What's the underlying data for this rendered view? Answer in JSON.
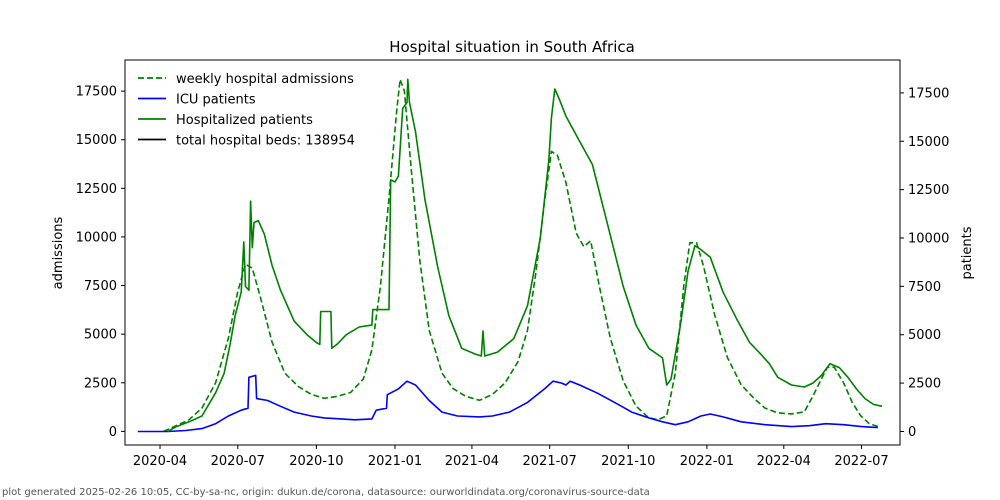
{
  "chart_data": {
    "type": "line",
    "title": "Hospital situation in South Africa",
    "xlabel": "",
    "ylabel_left": "admissions",
    "ylabel_right": "patients",
    "xlim": [
      "2020-02-20",
      "2022-08-15"
    ],
    "ylim_left": [
      -700,
      19100
    ],
    "ylim_right": [
      -700,
      19200
    ],
    "grid": false,
    "legend_placement": "top-left",
    "x_ticks": [
      "2020-04",
      "2020-07",
      "2020-10",
      "2021-01",
      "2021-04",
      "2021-07",
      "2021-10",
      "2022-01",
      "2022-04",
      "2022-07"
    ],
    "y_ticks_left": [
      0,
      2500,
      5000,
      7500,
      10000,
      12500,
      15000,
      17500
    ],
    "y_ticks_right": [
      0,
      2500,
      5000,
      7500,
      10000,
      12500,
      15000,
      17500
    ],
    "legend": [
      {
        "label": "weekly hospital admissions",
        "color": "#008000",
        "style": "dashed"
      },
      {
        "label": "ICU patients",
        "color": "#0000ff",
        "style": "solid"
      },
      {
        "label": "Hospitalized patients",
        "color": "#008000",
        "style": "solid"
      },
      {
        "label": "total hospital beds: 138954",
        "color": "#000000",
        "style": "solid"
      }
    ],
    "series": [
      {
        "name": "weekly hospital admissions",
        "axis": "left",
        "color": "#008000",
        "style": "dashed",
        "points": [
          [
            "2020-04-05",
            0
          ],
          [
            "2020-04-20",
            300
          ],
          [
            "2020-05-05",
            600
          ],
          [
            "2020-05-20",
            1200
          ],
          [
            "2020-06-05",
            2500
          ],
          [
            "2020-06-20",
            4800
          ],
          [
            "2020-07-01",
            7200
          ],
          [
            "2020-07-10",
            8600
          ],
          [
            "2020-07-18",
            8400
          ],
          [
            "2020-07-28",
            6800
          ],
          [
            "2020-08-10",
            4600
          ],
          [
            "2020-08-25",
            3000
          ],
          [
            "2020-09-10",
            2300
          ],
          [
            "2020-09-25",
            1900
          ],
          [
            "2020-10-10",
            1700
          ],
          [
            "2020-10-25",
            1800
          ],
          [
            "2020-11-10",
            2000
          ],
          [
            "2020-11-25",
            2700
          ],
          [
            "2020-12-05",
            4200
          ],
          [
            "2020-12-15",
            7500
          ],
          [
            "2020-12-25",
            12000
          ],
          [
            "2021-01-03",
            16500
          ],
          [
            "2021-01-07",
            18100
          ],
          [
            "2021-01-12",
            17500
          ],
          [
            "2021-01-20",
            13500
          ],
          [
            "2021-01-30",
            8800
          ],
          [
            "2021-02-10",
            5200
          ],
          [
            "2021-02-25",
            3000
          ],
          [
            "2021-03-10",
            2200
          ],
          [
            "2021-03-25",
            1800
          ],
          [
            "2021-04-10",
            1600
          ],
          [
            "2021-04-25",
            1900
          ],
          [
            "2021-05-10",
            2500
          ],
          [
            "2021-05-25",
            3600
          ],
          [
            "2021-06-05",
            5200
          ],
          [
            "2021-06-15",
            8200
          ],
          [
            "2021-06-25",
            11800
          ],
          [
            "2021-07-03",
            14400
          ],
          [
            "2021-07-10",
            14200
          ],
          [
            "2021-07-20",
            12800
          ],
          [
            "2021-08-01",
            10200
          ],
          [
            "2021-08-10",
            9500
          ],
          [
            "2021-08-18",
            9800
          ],
          [
            "2021-08-28",
            7500
          ],
          [
            "2021-09-10",
            4800
          ],
          [
            "2021-09-25",
            2600
          ],
          [
            "2021-10-10",
            1300
          ],
          [
            "2021-10-25",
            700
          ],
          [
            "2021-11-05",
            600
          ],
          [
            "2021-11-15",
            800
          ],
          [
            "2021-11-25",
            3000
          ],
          [
            "2021-12-05",
            7500
          ],
          [
            "2021-12-12",
            9700
          ],
          [
            "2021-12-20",
            9700
          ],
          [
            "2021-12-28",
            8500
          ],
          [
            "2022-01-10",
            6000
          ],
          [
            "2022-01-25",
            3800
          ],
          [
            "2022-02-10",
            2400
          ],
          [
            "2022-02-25",
            1700
          ],
          [
            "2022-03-10",
            1200
          ],
          [
            "2022-03-25",
            950
          ],
          [
            "2022-04-10",
            900
          ],
          [
            "2022-04-25",
            1000
          ],
          [
            "2022-05-05",
            1800
          ],
          [
            "2022-05-15",
            2700
          ],
          [
            "2022-05-22",
            3300
          ],
          [
            "2022-05-30",
            3300
          ],
          [
            "2022-06-10",
            2500
          ],
          [
            "2022-06-20",
            1500
          ],
          [
            "2022-06-30",
            800
          ],
          [
            "2022-07-10",
            400
          ],
          [
            "2022-07-20",
            250
          ]
        ]
      },
      {
        "name": "ICU patients",
        "axis": "right",
        "color": "#0000ff",
        "style": "solid",
        "points": [
          [
            "2020-03-06",
            0
          ],
          [
            "2020-04-10",
            0
          ],
          [
            "2020-05-01",
            50
          ],
          [
            "2020-05-20",
            150
          ],
          [
            "2020-06-05",
            400
          ],
          [
            "2020-06-20",
            800
          ],
          [
            "2020-07-05",
            1100
          ],
          [
            "2020-07-13",
            1200
          ],
          [
            "2020-07-14",
            2800
          ],
          [
            "2020-07-22",
            2900
          ],
          [
            "2020-07-23",
            1700
          ],
          [
            "2020-08-05",
            1600
          ],
          [
            "2020-08-20",
            1300
          ],
          [
            "2020-09-05",
            1000
          ],
          [
            "2020-09-25",
            800
          ],
          [
            "2020-10-10",
            700
          ],
          [
            "2020-10-30",
            650
          ],
          [
            "2020-11-15",
            600
          ],
          [
            "2020-12-05",
            650
          ],
          [
            "2020-12-10",
            1100
          ],
          [
            "2020-12-22",
            1200
          ],
          [
            "2020-12-23",
            1900
          ],
          [
            "2021-01-05",
            2200
          ],
          [
            "2021-01-15",
            2600
          ],
          [
            "2021-01-25",
            2400
          ],
          [
            "2021-02-10",
            1600
          ],
          [
            "2021-02-25",
            1000
          ],
          [
            "2021-03-15",
            800
          ],
          [
            "2021-04-10",
            750
          ],
          [
            "2021-04-25",
            800
          ],
          [
            "2021-05-15",
            1000
          ],
          [
            "2021-06-05",
            1500
          ],
          [
            "2021-06-25",
            2200
          ],
          [
            "2021-07-05",
            2600
          ],
          [
            "2021-07-15",
            2500
          ],
          [
            "2021-07-20",
            2400
          ],
          [
            "2021-07-25",
            2600
          ],
          [
            "2021-08-05",
            2400
          ],
          [
            "2021-08-25",
            2000
          ],
          [
            "2021-09-15",
            1500
          ],
          [
            "2021-10-05",
            1000
          ],
          [
            "2021-10-25",
            700
          ],
          [
            "2021-11-10",
            500
          ],
          [
            "2021-11-25",
            350
          ],
          [
            "2021-12-10",
            500
          ],
          [
            "2021-12-25",
            800
          ],
          [
            "2022-01-05",
            900
          ],
          [
            "2022-01-20",
            750
          ],
          [
            "2022-02-10",
            500
          ],
          [
            "2022-03-10",
            350
          ],
          [
            "2022-04-10",
            250
          ],
          [
            "2022-05-01",
            300
          ],
          [
            "2022-05-20",
            400
          ],
          [
            "2022-06-10",
            350
          ],
          [
            "2022-07-01",
            250
          ],
          [
            "2022-07-20",
            200
          ]
        ]
      },
      {
        "name": "Hospitalized patients",
        "axis": "right",
        "color": "#008000",
        "style": "solid",
        "points": [
          [
            "2020-04-10",
            0
          ],
          [
            "2020-04-20",
            250
          ],
          [
            "2020-05-05",
            500
          ],
          [
            "2020-05-20",
            800
          ],
          [
            "2020-06-05",
            2000
          ],
          [
            "2020-06-15",
            3000
          ],
          [
            "2020-06-22",
            4500
          ],
          [
            "2020-06-28",
            6000
          ],
          [
            "2020-07-05",
            7200
          ],
          [
            "2020-07-08",
            9800
          ],
          [
            "2020-07-10",
            7500
          ],
          [
            "2020-07-14",
            7300
          ],
          [
            "2020-07-16",
            11900
          ],
          [
            "2020-07-18",
            9500
          ],
          [
            "2020-07-20",
            10800
          ],
          [
            "2020-07-25",
            10900
          ],
          [
            "2020-08-01",
            10200
          ],
          [
            "2020-08-10",
            8600
          ],
          [
            "2020-08-20",
            7300
          ],
          [
            "2020-09-05",
            5700
          ],
          [
            "2020-09-20",
            5000
          ],
          [
            "2020-10-01",
            4600
          ],
          [
            "2020-10-05",
            4500
          ],
          [
            "2020-10-06",
            6200
          ],
          [
            "2020-10-18",
            6200
          ],
          [
            "2020-10-19",
            4300
          ],
          [
            "2020-10-25",
            4500
          ],
          [
            "2020-11-05",
            5000
          ],
          [
            "2020-11-20",
            5400
          ],
          [
            "2020-12-05",
            5500
          ],
          [
            "2020-12-06",
            6300
          ],
          [
            "2020-12-25",
            6300
          ],
          [
            "2020-12-27",
            13000
          ],
          [
            "2021-01-01",
            12900
          ],
          [
            "2021-01-05",
            13200
          ],
          [
            "2021-01-10",
            16700
          ],
          [
            "2021-01-15",
            17000
          ],
          [
            "2021-01-16",
            18200
          ],
          [
            "2021-01-18",
            17000
          ],
          [
            "2021-01-25",
            15500
          ],
          [
            "2021-02-05",
            12000
          ],
          [
            "2021-02-20",
            8500
          ],
          [
            "2021-03-05",
            6000
          ],
          [
            "2021-03-20",
            4300
          ],
          [
            "2021-04-05",
            4000
          ],
          [
            "2021-04-12",
            3900
          ],
          [
            "2021-04-14",
            5200
          ],
          [
            "2021-04-16",
            3900
          ],
          [
            "2021-05-01",
            4100
          ],
          [
            "2021-05-20",
            4800
          ],
          [
            "2021-06-05",
            6500
          ],
          [
            "2021-06-20",
            10000
          ],
          [
            "2021-06-30",
            14000
          ],
          [
            "2021-07-03",
            16200
          ],
          [
            "2021-07-07",
            17700
          ],
          [
            "2021-07-12",
            17200
          ],
          [
            "2021-07-20",
            16300
          ],
          [
            "2021-08-05",
            15000
          ],
          [
            "2021-08-20",
            13800
          ],
          [
            "2021-09-05",
            11000
          ],
          [
            "2021-09-25",
            7500
          ],
          [
            "2021-10-10",
            5500
          ],
          [
            "2021-10-25",
            4300
          ],
          [
            "2021-11-10",
            3800
          ],
          [
            "2021-11-15",
            2400
          ],
          [
            "2021-11-20",
            2700
          ],
          [
            "2021-12-01",
            5500
          ],
          [
            "2021-12-10",
            8300
          ],
          [
            "2021-12-18",
            9600
          ],
          [
            "2021-12-25",
            9400
          ],
          [
            "2022-01-05",
            9000
          ],
          [
            "2022-01-20",
            7200
          ],
          [
            "2022-02-05",
            5800
          ],
          [
            "2022-02-20",
            4600
          ],
          [
            "2022-03-05",
            4000
          ],
          [
            "2022-03-15",
            3500
          ],
          [
            "2022-03-25",
            2800
          ],
          [
            "2022-04-10",
            2400
          ],
          [
            "2022-04-25",
            2300
          ],
          [
            "2022-05-05",
            2500
          ],
          [
            "2022-05-15",
            2900
          ],
          [
            "2022-05-25",
            3500
          ],
          [
            "2022-06-05",
            3300
          ],
          [
            "2022-06-15",
            2800
          ],
          [
            "2022-06-25",
            2200
          ],
          [
            "2022-07-05",
            1700
          ],
          [
            "2022-07-15",
            1400
          ],
          [
            "2022-07-25",
            1300
          ]
        ]
      }
    ]
  },
  "footer": "plot generated 2025-02-26 10:05, CC-by-sa-nc, origin: dukun.de/corona, datasource: ourworldindata.org/coronavirus-source-data"
}
